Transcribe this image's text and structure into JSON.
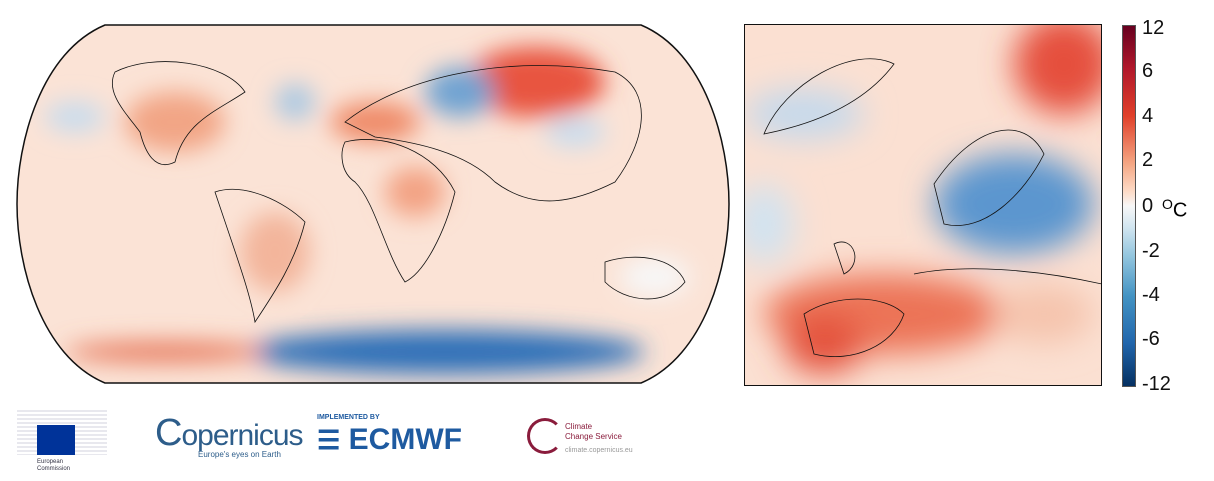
{
  "colorbar": {
    "ticks": [
      "12",
      "6",
      "4",
      "2",
      "0",
      "-2",
      "-4",
      "-6",
      "-12"
    ],
    "unit": "C",
    "unit_prefix": "O",
    "colors": [
      "#67001f",
      "#b2182b",
      "#f4a582",
      "#f7f7f7",
      "#92c5de",
      "#2166ac",
      "#053061"
    ]
  },
  "logos": {
    "ec": {
      "line1": "European",
      "line2": "Commission"
    },
    "copernicus": {
      "name": "opernicus",
      "initial": "C",
      "tagline": "Europe's eyes on Earth"
    },
    "ecmwf": {
      "pre": "IMPLEMENTED BY",
      "name": "ECMWF"
    },
    "c3s": {
      "line1": "Climate",
      "line2": "Change Service",
      "url": "climate.copernicus.eu"
    }
  }
}
